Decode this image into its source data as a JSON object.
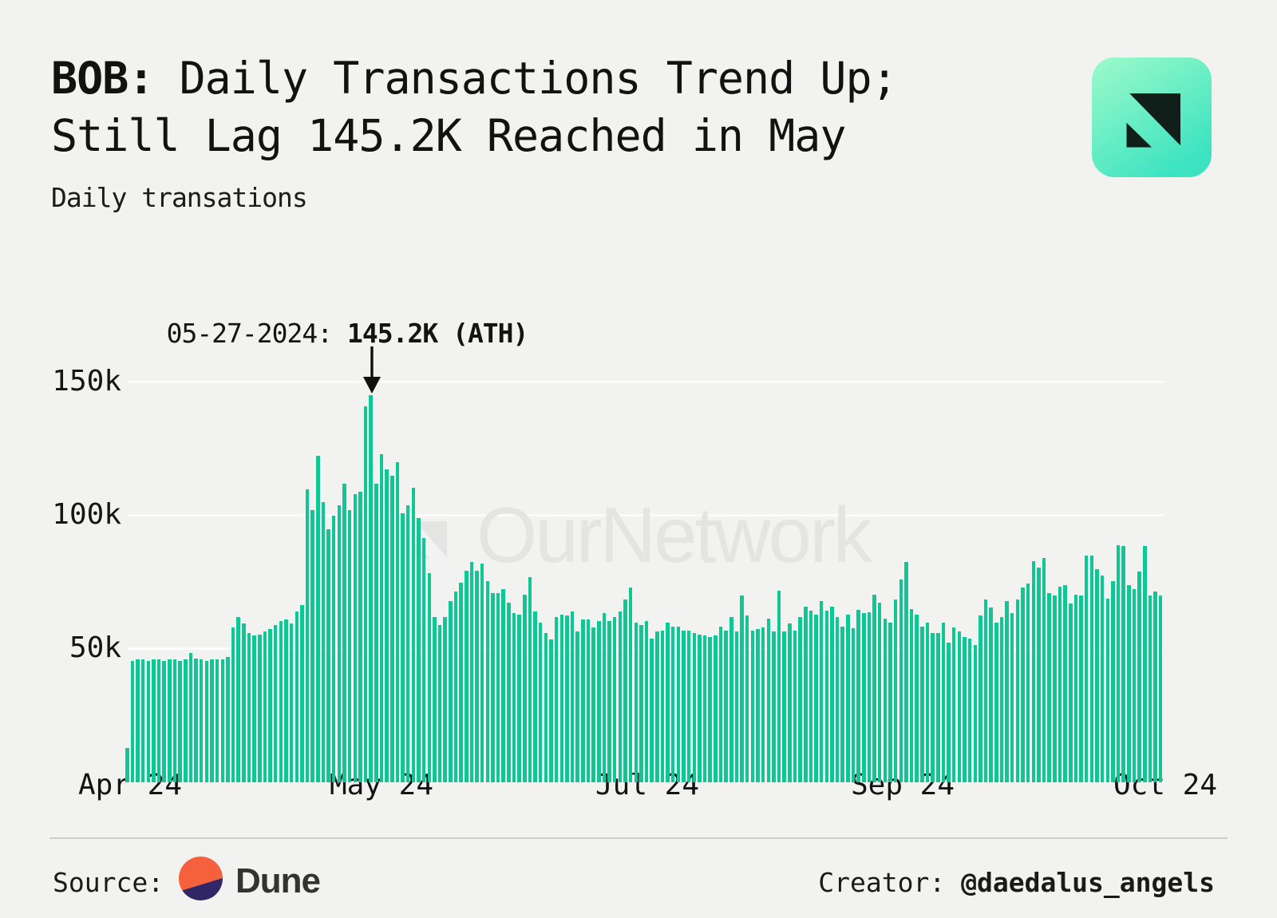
{
  "header": {
    "title_prefix": "BOB:",
    "title_line1_rest": " Daily Transactions Trend Up;",
    "title_line2": "Still Lag 145.2K Reached in May",
    "subtitle": "Daily transations"
  },
  "logo": {
    "gradient_top": "#9efac9",
    "gradient_bottom": "#3be3c1",
    "mark_color": "#111f1b"
  },
  "chart": {
    "bar_color": "#0fc795",
    "watermark": "OurNetwork",
    "watermark_color": "#e4e4e2",
    "annotation_prefix": "05-27-2024: ",
    "annotation_bold": "145.2K (ATH)",
    "y_ticks": [
      "150k",
      "100k",
      "50k"
    ],
    "x_ticks": [
      "Apr 24",
      "May 24",
      "Jul 24",
      "Sep 24",
      "Oct 24"
    ]
  },
  "chart_data": {
    "type": "bar",
    "title": "BOB: Daily Transactions Trend Up; Still Lag 145.2K Reached in May",
    "ylabel": "Daily transations",
    "unit": "thousands of transactions per day",
    "x_range_labels": [
      "Apr 24",
      "Oct 24"
    ],
    "x_tick_labels": [
      "Apr 24",
      "May 24",
      "Jul 24",
      "Sep 24",
      "Oct 24"
    ],
    "y_ticks_k": [
      50,
      100,
      150
    ],
    "ylim_k": [
      0,
      158
    ],
    "grid": true,
    "legend": false,
    "ath": {
      "date": "05-27-2024",
      "value_k": 145.2
    },
    "values_k": [
      13,
      45.5,
      46,
      46,
      45.5,
      46,
      46,
      45.5,
      46,
      46,
      45.5,
      46,
      48.5,
      46.5,
      46,
      45.5,
      46,
      46,
      46,
      47,
      58,
      62,
      59.5,
      56,
      55,
      55.5,
      56.5,
      57.5,
      59,
      60.5,
      61,
      59.5,
      64,
      66.5,
      110,
      102,
      122.5,
      105,
      95,
      100,
      104,
      112,
      102,
      108,
      109,
      141,
      145.2,
      112,
      123,
      117.5,
      115,
      120,
      101,
      104,
      110.5,
      99,
      91.5,
      78.5,
      62,
      59,
      62,
      68,
      71.5,
      75,
      79.5,
      82.5,
      79.5,
      82,
      75.5,
      71,
      71,
      72.5,
      67.5,
      63.5,
      63,
      70.5,
      77,
      64,
      60,
      56,
      53.5,
      62,
      63,
      62.5,
      64,
      56.5,
      61,
      61,
      58,
      60.5,
      63.5,
      60.5,
      62,
      64,
      68.5,
      73,
      60,
      59,
      60.5,
      54,
      56.5,
      57,
      60,
      58.5,
      58.5,
      57,
      57,
      56,
      55.5,
      55,
      54.5,
      55,
      58.5,
      57,
      62,
      56.5,
      70,
      62.5,
      57,
      57.5,
      58,
      61.5,
      56.5,
      72,
      56.5,
      59.5,
      57,
      62,
      66,
      64.5,
      63,
      68,
      64.5,
      66,
      62,
      58.5,
      62.8,
      57.8,
      64.8,
      63.5,
      63.8,
      70.5,
      67.5,
      61.5,
      59.8,
      68.5,
      76,
      82.5,
      65,
      63,
      58.5,
      60,
      56,
      56,
      60,
      52.5,
      58,
      56.5,
      54.5,
      54,
      51.5,
      62.5,
      68.5,
      65.5,
      60,
      62,
      68,
      63.5,
      68.5,
      73,
      74.5,
      83,
      80.5,
      84,
      71,
      70,
      73.5,
      74,
      67,
      70.5,
      70,
      85,
      85,
      80,
      77.5,
      69,
      75.5,
      89,
      88.5,
      74,
      72.5,
      79,
      88.5,
      70,
      71.5,
      70
    ]
  },
  "footer": {
    "source_label": "Source:",
    "source_name": "Dune",
    "creator_label": "Creator: ",
    "creator_handle": "@daedalus_angels"
  }
}
